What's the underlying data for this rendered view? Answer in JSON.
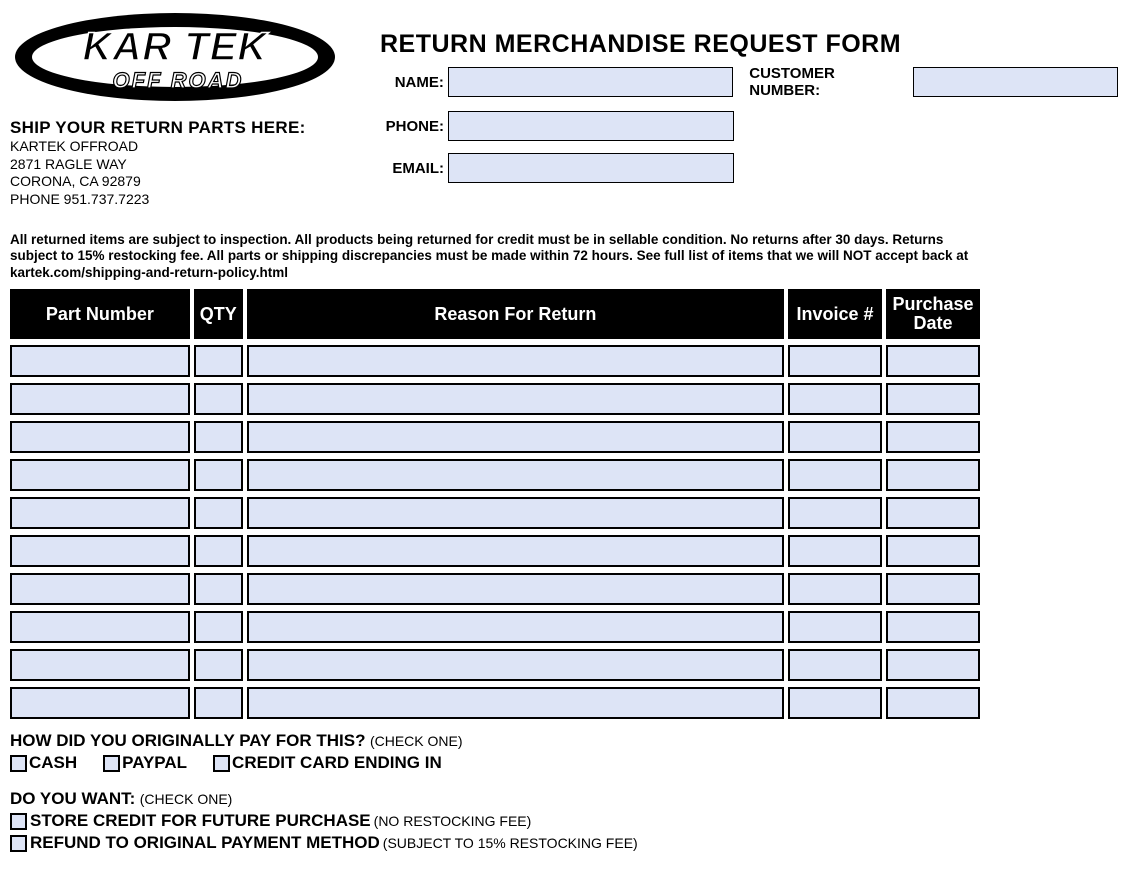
{
  "company": {
    "logo_top": "KAR TEK",
    "logo_bottom": "OFF ROAD",
    "ship_header": "SHIP YOUR RETURN PARTS HERE:",
    "ship_lines": [
      "KARTEK OFFROAD",
      "2871 RAGLE WAY",
      "CORONA, CA 92879",
      "PHONE 951.737.7223"
    ]
  },
  "form": {
    "title": "RETURN MERCHANDISE REQUEST FORM",
    "labels": {
      "name": "NAME:",
      "phone": "PHONE:",
      "email": "EMAIL:",
      "customer_number": "CUSTOMER NUMBER:"
    },
    "values": {
      "name": "",
      "phone": "",
      "email": "",
      "customer_number": ""
    }
  },
  "policy_text": "All returned items are subject to inspection. All products being returned for credit must be in sellable condition. No returns after 30 days. Returns subject to 15% restocking fee. All parts or shipping discrepancies must be made within 72 hours. See full list of items that we will NOT accept back at kartek.com/shipping-and-return-policy.html",
  "table": {
    "headers": {
      "part_number": "Part Number",
      "qty": "QTY",
      "reason": "Reason For Return",
      "invoice": "Invoice #",
      "purchase_date": "Purchase\nDate"
    },
    "rows": [
      {
        "part": "",
        "qty": "",
        "reason": "",
        "invoice": "",
        "date": ""
      },
      {
        "part": "",
        "qty": "",
        "reason": "",
        "invoice": "",
        "date": ""
      },
      {
        "part": "",
        "qty": "",
        "reason": "",
        "invoice": "",
        "date": ""
      },
      {
        "part": "",
        "qty": "",
        "reason": "",
        "invoice": "",
        "date": ""
      },
      {
        "part": "",
        "qty": "",
        "reason": "",
        "invoice": "",
        "date": ""
      },
      {
        "part": "",
        "qty": "",
        "reason": "",
        "invoice": "",
        "date": ""
      },
      {
        "part": "",
        "qty": "",
        "reason": "",
        "invoice": "",
        "date": ""
      },
      {
        "part": "",
        "qty": "",
        "reason": "",
        "invoice": "",
        "date": ""
      },
      {
        "part": "",
        "qty": "",
        "reason": "",
        "invoice": "",
        "date": ""
      },
      {
        "part": "",
        "qty": "",
        "reason": "",
        "invoice": "",
        "date": ""
      }
    ]
  },
  "payment_q": {
    "question": "HOW DID YOU ORIGINALLY PAY FOR THIS?",
    "note": "(CHECK ONE)",
    "options": [
      {
        "label": "CASH"
      },
      {
        "label": "PAYPAL"
      },
      {
        "label": "CREDIT CARD ENDING IN"
      }
    ]
  },
  "want_q": {
    "question": "DO YOU WANT:",
    "note": "(CHECK ONE)",
    "options": [
      {
        "label": "STORE CREDIT FOR FUTURE PURCHASE",
        "sub": "(NO RESTOCKING FEE)"
      },
      {
        "label": "REFUND TO ORIGINAL PAYMENT METHOD",
        "sub": "(SUBJECT TO 15% RESTOCKING FEE)"
      }
    ]
  },
  "colors": {
    "input_bg": "#dde4f6",
    "header_bg": "#000000",
    "header_fg": "#ffffff"
  }
}
